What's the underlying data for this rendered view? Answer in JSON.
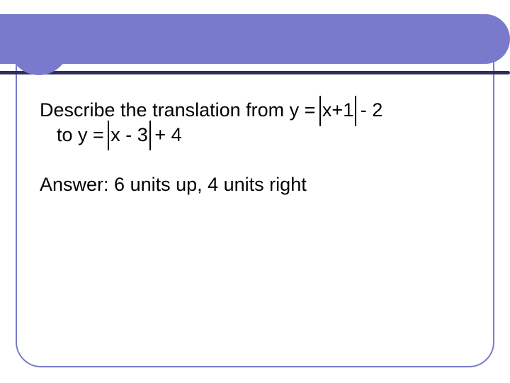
{
  "slide": {
    "background_color": "#ffffff",
    "accent_color": "#7a7acc",
    "accent_line_color": "#2e2e5e",
    "border_radius": 36,
    "font_family": "Arial",
    "question_fontsize": 27,
    "answer_fontsize": 27,
    "text_color": "#000000",
    "question": {
      "prefix": "Describe the translation from y = ",
      "abs1": "x+1",
      "mid1": " - 2",
      "line2_prefix": "to y = ",
      "abs2": "x - 3",
      "mid2": "  + 4"
    },
    "answer": {
      "label": "Answer:  ",
      "text": "6 units up, 4 units right"
    }
  }
}
